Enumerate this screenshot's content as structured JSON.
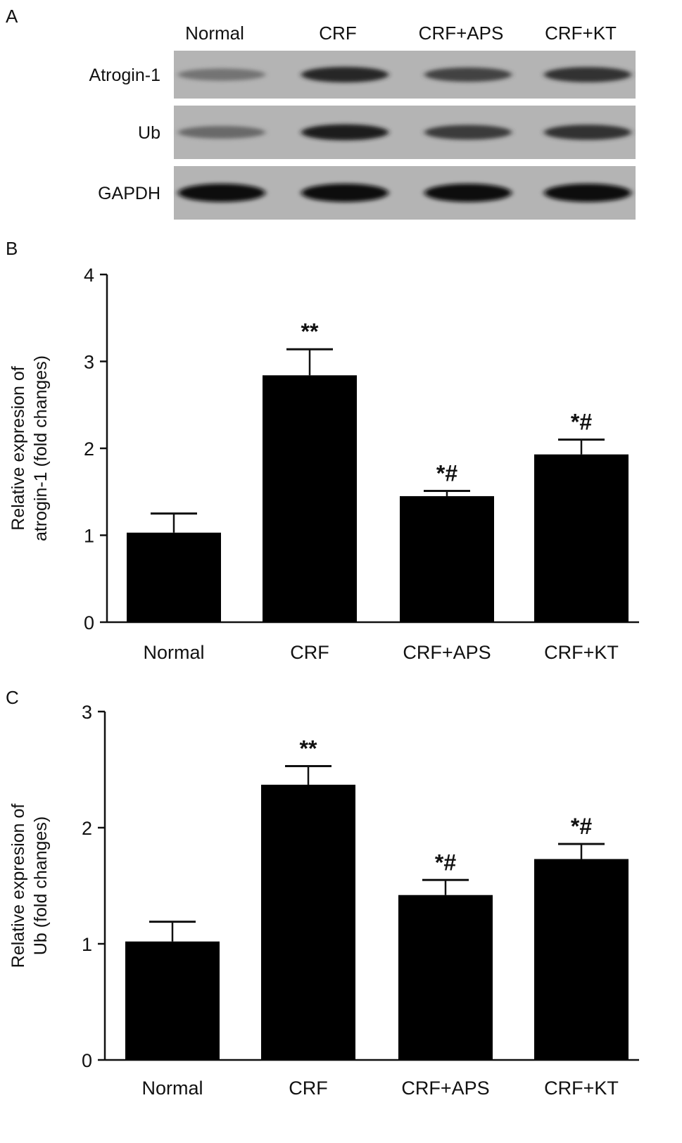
{
  "panels": {
    "a": "A",
    "b": "B",
    "c": "C"
  },
  "blot": {
    "lanes": [
      "Normal",
      "CRF",
      "CRF+APS",
      "CRF+KT"
    ],
    "rows": [
      {
        "label": "Atrogin-1",
        "intensity": [
          0.45,
          0.85,
          0.7,
          0.8
        ]
      },
      {
        "label": "Ub",
        "intensity": [
          0.5,
          0.9,
          0.75,
          0.8
        ]
      },
      {
        "label": "GAPDH",
        "intensity": [
          1.0,
          1.0,
          1.0,
          1.0
        ]
      }
    ]
  },
  "chart_data": [
    {
      "type": "bar",
      "title": "",
      "categories": [
        "Normal",
        "CRF",
        "CRF+APS",
        "CRF+KT"
      ],
      "values": [
        1.03,
        2.84,
        1.45,
        1.93
      ],
      "error": [
        0.22,
        0.3,
        0.06,
        0.17
      ],
      "annotations": [
        "",
        "**",
        "*#",
        "*#"
      ],
      "ylabel": [
        "Relative expresion of",
        "atrogin-1 (fold changes)"
      ],
      "xlabel": "",
      "ylim": [
        0,
        4
      ],
      "yticks": [
        "0",
        "1",
        "2",
        "3",
        "4"
      ],
      "grid": false,
      "bar_color": "#000000"
    },
    {
      "type": "bar",
      "title": "",
      "categories": [
        "Normal",
        "CRF",
        "CRF+APS",
        "CRF+KT"
      ],
      "values": [
        1.02,
        2.37,
        1.42,
        1.73
      ],
      "error": [
        0.17,
        0.16,
        0.13,
        0.13
      ],
      "annotations": [
        "",
        "**",
        "*#",
        "*#"
      ],
      "ylabel": [
        "Relative expresion of",
        "Ub (fold changes)"
      ],
      "xlabel": "",
      "ylim": [
        0,
        3
      ],
      "yticks": [
        "0",
        "1",
        "2",
        "3"
      ],
      "grid": false,
      "bar_color": "#000000"
    }
  ]
}
